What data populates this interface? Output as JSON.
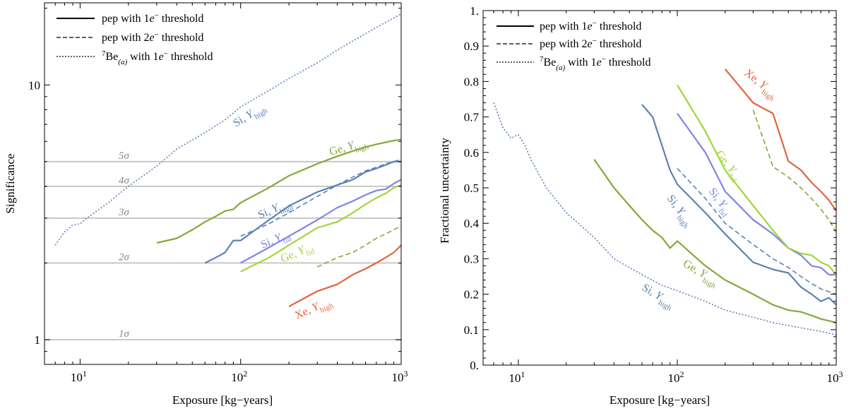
{
  "colors": {
    "Si": "#5b82b4",
    "Ge": "#84a83a",
    "Ge_fid": "#9fd63a",
    "Si_fid": "#7f86e0",
    "Xe": "#e2653f",
    "sigma_lines": "#c8c8c8"
  },
  "chart_data": [
    {
      "type": "line",
      "title": "",
      "xlabel": "Exposure [kg−years]",
      "ylabel": "Significance",
      "xscale": "log",
      "yscale": "log",
      "xlim": [
        6,
        1000
      ],
      "ylim": [
        0.8,
        21
      ],
      "x_ticks": [
        10,
        100,
        1000
      ],
      "x_tick_labels": [
        "10",
        "10",
        "10"
      ],
      "x_tick_exponents": [
        "1",
        "2",
        "3"
      ],
      "y_ticks": [
        1,
        10
      ],
      "y_tick_labels": [
        "1",
        "10"
      ],
      "legend_position": "top-left",
      "legend": [
        {
          "label": "pep with 1e⁻ threshold",
          "style": "solid"
        },
        {
          "label": "pep with 2e⁻ threshold",
          "style": "dashed"
        },
        {
          "label": "⁷Be(a) with 1e⁻ threshold",
          "style": "dotted"
        }
      ],
      "reference_lines": [
        {
          "label": "1σ",
          "value": 1
        },
        {
          "label": "2σ",
          "value": 2
        },
        {
          "label": "3σ",
          "value": 3
        },
        {
          "label": "4σ",
          "value": 4
        },
        {
          "label": "5σ",
          "value": 5
        }
      ],
      "series": [
        {
          "label": "Si, Y_high",
          "color_key": "Si",
          "style": "dotted",
          "x": [
            7,
            8,
            9,
            10,
            11,
            12,
            15,
            20,
            30,
            40,
            60,
            80,
            100,
            150,
            200,
            300,
            400,
            600,
            800,
            1000
          ],
          "y": [
            2.35,
            2.65,
            2.82,
            2.85,
            3.0,
            3.12,
            3.45,
            4.0,
            4.8,
            5.6,
            6.5,
            7.3,
            8.2,
            9.5,
            10.6,
            12.2,
            13.7,
            15.9,
            17.6,
            19.0
          ]
        },
        {
          "label": "Ge, Y_high",
          "color_key": "Ge",
          "style": "solid",
          "x": [
            30,
            40,
            50,
            60,
            70,
            80,
            90,
            100,
            150,
            200,
            300,
            400,
            500,
            600,
            700,
            800,
            900,
            1000
          ],
          "y": [
            2.4,
            2.5,
            2.7,
            2.9,
            3.05,
            3.2,
            3.25,
            3.45,
            3.95,
            4.4,
            4.9,
            5.25,
            5.5,
            5.7,
            5.85,
            5.95,
            6.05,
            6.1
          ]
        },
        {
          "label": "Si, Y_high",
          "color_key": "Si",
          "style": "solid",
          "x": [
            60,
            70,
            80,
            90,
            100,
            150,
            200,
            300,
            400,
            500,
            600,
            700,
            800,
            900,
            1000
          ],
          "y": [
            2.0,
            2.1,
            2.2,
            2.45,
            2.45,
            2.95,
            3.35,
            3.8,
            4.05,
            4.25,
            4.55,
            4.7,
            4.85,
            5.0,
            5.0
          ]
        },
        {
          "label": "Si, Y_high",
          "color_key": "Si",
          "style": "dashed",
          "x": [
            100,
            150,
            200,
            300,
            400,
            500,
            600,
            700,
            800,
            1000
          ],
          "y": [
            2.55,
            2.85,
            3.15,
            3.65,
            4.05,
            4.35,
            4.6,
            4.75,
            4.9,
            5.1
          ]
        },
        {
          "label": "Si, Y_fid",
          "color_key": "Si_fid",
          "style": "solid",
          "x": [
            100,
            150,
            200,
            300,
            400,
            500,
            600,
            700,
            800,
            900,
            1000
          ],
          "y": [
            2.0,
            2.3,
            2.55,
            2.95,
            3.3,
            3.5,
            3.7,
            3.85,
            3.9,
            4.1,
            4.25
          ]
        },
        {
          "label": "Ge, Y_fid",
          "color_key": "Ge_fid",
          "style": "solid",
          "x": [
            100,
            150,
            200,
            300,
            400,
            500,
            600,
            700,
            800,
            900,
            1000
          ],
          "y": [
            1.85,
            2.1,
            2.35,
            2.75,
            2.9,
            3.15,
            3.4,
            3.6,
            3.75,
            3.95,
            4.05
          ]
        },
        {
          "label": "Ge, Y_fid",
          "color_key": "Ge",
          "style": "dashed",
          "x": [
            300,
            400,
            500,
            600,
            700,
            800,
            900,
            1000
          ],
          "y": [
            1.93,
            2.1,
            2.2,
            2.35,
            2.5,
            2.6,
            2.7,
            2.8
          ]
        },
        {
          "label": "Xe, Y_high",
          "color_key": "Xe",
          "style": "solid",
          "x": [
            200,
            300,
            400,
            500,
            600,
            700,
            800,
            900,
            1000
          ],
          "y": [
            1.35,
            1.55,
            1.65,
            1.8,
            1.9,
            2.0,
            2.1,
            2.2,
            2.35
          ]
        }
      ]
    },
    {
      "type": "line",
      "title": "",
      "xlabel": "Exposure [kg−years]",
      "ylabel": "Fractional uncertainty",
      "xscale": "log",
      "yscale": "linear",
      "xlim": [
        6,
        1000
      ],
      "ylim": [
        0,
        1
      ],
      "x_ticks": [
        10,
        100,
        1000
      ],
      "x_tick_labels": [
        "10",
        "10",
        "10"
      ],
      "x_tick_exponents": [
        "1",
        "2",
        "3"
      ],
      "y_ticks": [
        0,
        0.1,
        0.2,
        0.3,
        0.4,
        0.5,
        0.6,
        0.7,
        0.8,
        0.9,
        1
      ],
      "y_tick_labels": [
        "0.",
        "0.1",
        "0.2",
        "0.3",
        "0.4",
        "0.5",
        "0.6",
        "0.7",
        "0.8",
        "0.9",
        "1."
      ],
      "legend_position": "top-left",
      "legend": [
        {
          "label": "pep with 1e⁻ threshold",
          "style": "solid"
        },
        {
          "label": "pep with 2e⁻ threshold",
          "style": "dashed"
        },
        {
          "label": "⁷Be(a) with 1e⁻ threshold",
          "style": "dotted"
        }
      ],
      "series": [
        {
          "label": "Si, Y_high",
          "color_key": "Si",
          "style": "dotted",
          "x": [
            7,
            8,
            9,
            10,
            11,
            12,
            15,
            20,
            30,
            40,
            60,
            80,
            100,
            150,
            200,
            300,
            400,
            600,
            800,
            1000
          ],
          "y": [
            0.74,
            0.67,
            0.64,
            0.65,
            0.62,
            0.58,
            0.5,
            0.43,
            0.36,
            0.3,
            0.255,
            0.225,
            0.21,
            0.18,
            0.155,
            0.135,
            0.12,
            0.105,
            0.095,
            0.085
          ]
        },
        {
          "label": "Ge, Y_high",
          "color_key": "Ge",
          "style": "solid",
          "x": [
            30,
            40,
            50,
            60,
            70,
            80,
            90,
            100,
            150,
            200,
            300,
            400,
            500,
            600,
            700,
            800,
            900,
            1000
          ],
          "y": [
            0.58,
            0.5,
            0.45,
            0.41,
            0.38,
            0.36,
            0.33,
            0.35,
            0.28,
            0.24,
            0.2,
            0.17,
            0.155,
            0.15,
            0.14,
            0.13,
            0.125,
            0.12
          ]
        },
        {
          "label": "Si, Y_high",
          "color_key": "Si",
          "style": "solid",
          "x": [
            60,
            70,
            80,
            90,
            100,
            150,
            200,
            300,
            400,
            500,
            600,
            700,
            800,
            900,
            1000
          ],
          "y": [
            0.735,
            0.7,
            0.62,
            0.55,
            0.51,
            0.43,
            0.37,
            0.29,
            0.27,
            0.26,
            0.22,
            0.2,
            0.18,
            0.19,
            0.17
          ]
        },
        {
          "label": "Si, Y_high",
          "color_key": "Si",
          "style": "dashed",
          "x": [
            100,
            150,
            200,
            300,
            400,
            500,
            600,
            700,
            800,
            1000
          ],
          "y": [
            0.555,
            0.47,
            0.4,
            0.34,
            0.3,
            0.275,
            0.25,
            0.23,
            0.215,
            0.2
          ]
        },
        {
          "label": "Si, Y_fid",
          "color_key": "Si_fid",
          "style": "solid",
          "x": [
            100,
            150,
            200,
            300,
            400,
            500,
            600,
            700,
            800,
            900,
            1000
          ],
          "y": [
            0.71,
            0.6,
            0.49,
            0.41,
            0.37,
            0.33,
            0.31,
            0.28,
            0.275,
            0.255,
            0.255
          ]
        },
        {
          "label": "Ge, Y_fid",
          "color_key": "Ge_fid",
          "style": "solid",
          "x": [
            100,
            150,
            200,
            300,
            400,
            500,
            600,
            700,
            800,
            900,
            1000
          ],
          "y": [
            0.79,
            0.66,
            0.55,
            0.45,
            0.38,
            0.33,
            0.315,
            0.31,
            0.29,
            0.28,
            0.255
          ]
        },
        {
          "label": "Ge, Y_fid",
          "color_key": "Ge",
          "style": "dashed",
          "x": [
            300,
            400,
            500,
            600,
            700,
            800,
            900,
            1000
          ],
          "y": [
            0.72,
            0.56,
            0.53,
            0.5,
            0.47,
            0.44,
            0.41,
            0.375
          ]
        },
        {
          "label": "Xe, Y_high",
          "color_key": "Xe",
          "style": "solid",
          "x": [
            200,
            300,
            400,
            500,
            600,
            700,
            800,
            900,
            1000
          ],
          "y": [
            0.835,
            0.74,
            0.71,
            0.575,
            0.55,
            0.515,
            0.49,
            0.465,
            0.435
          ]
        }
      ]
    }
  ],
  "annotations": {
    "left": {
      "si_dotted": {
        "main": "Si, ",
        "sym": "Y",
        "sub": "high"
      },
      "ge_high": {
        "main": "Ge, ",
        "sym": "Y",
        "sub": "high"
      },
      "si_high": {
        "main": "Si, ",
        "sym": "Y",
        "sub": "high"
      },
      "si_fid": {
        "main": "Si, ",
        "sym": "Y",
        "sub": "fid"
      },
      "ge_fid": {
        "main": "Ge, ",
        "sym": "Y",
        "sub": "fid"
      },
      "xe_high": {
        "main": "Xe, ",
        "sym": "Y",
        "sub": "high"
      }
    },
    "right": {
      "xe_high": {
        "main": "Xe, ",
        "sym": "Y",
        "sub": "high"
      },
      "ge_fid": {
        "main": "Ge, ",
        "sym": "Y",
        "sub": "fid"
      },
      "si_fid": {
        "main": "Si, ",
        "sym": "Y",
        "sub": "fid"
      },
      "si_high": {
        "main": "Si, ",
        "sym": "Y",
        "sub": "high"
      },
      "ge_high": {
        "main": "Ge, ",
        "sym": "Y",
        "sub": "high"
      },
      "si_dotted": {
        "main": "Si, ",
        "sym": "Y",
        "sub": "high"
      }
    }
  },
  "legend_text": {
    "pep1": {
      "pre": "pep with 1",
      "e": "e",
      "sup": "−",
      "post": " threshold"
    },
    "pep2": {
      "pre": "pep with 2",
      "e": "e",
      "sup": "−",
      "post": " threshold"
    },
    "be7": {
      "sup_pre": "7",
      "be": "Be",
      "sub": "(a)",
      "mid": " with 1",
      "e": "e",
      "sup": "−",
      "post": " threshold"
    }
  }
}
